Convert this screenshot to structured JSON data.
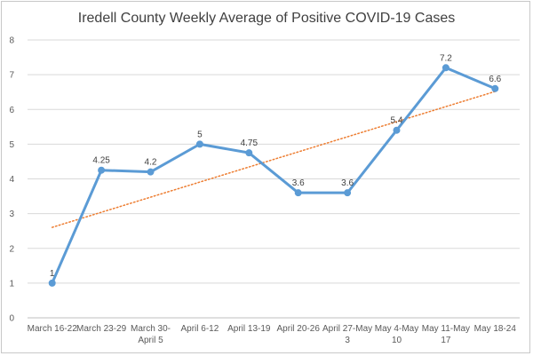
{
  "chart_data": {
    "type": "line",
    "title": "Iredell County Weekly Average of Positive COVID-19 Cases",
    "categories": [
      [
        "March 16-22"
      ],
      [
        "March 23-29"
      ],
      [
        "March 30-",
        "April 5"
      ],
      [
        "April 6-12"
      ],
      [
        "April 13-19"
      ],
      [
        "April 20-26"
      ],
      [
        "April 27-May",
        "3"
      ],
      [
        "May 4-May",
        "10"
      ],
      [
        "May 11-May",
        "17"
      ],
      [
        "May 18-24"
      ]
    ],
    "series": [
      {
        "values": [
          1,
          4.25,
          4.2,
          5,
          4.75,
          3.6,
          3.6,
          5.4,
          7.2,
          6.6
        ],
        "data_labels": [
          "1",
          "4.25",
          "4.2",
          "5",
          "4.75",
          "3.6",
          "3.6",
          "5.4",
          "7.2",
          "6.6"
        ],
        "color": "#5b9bd5"
      }
    ],
    "trendline": {
      "kind": "linear",
      "color": "#ed7d31",
      "style": "dotted"
    },
    "ylim": [
      0,
      8
    ],
    "yticks": [
      "0",
      "1",
      "2",
      "3",
      "4",
      "5",
      "6",
      "7",
      "8"
    ],
    "grid": true,
    "legend": "none"
  }
}
